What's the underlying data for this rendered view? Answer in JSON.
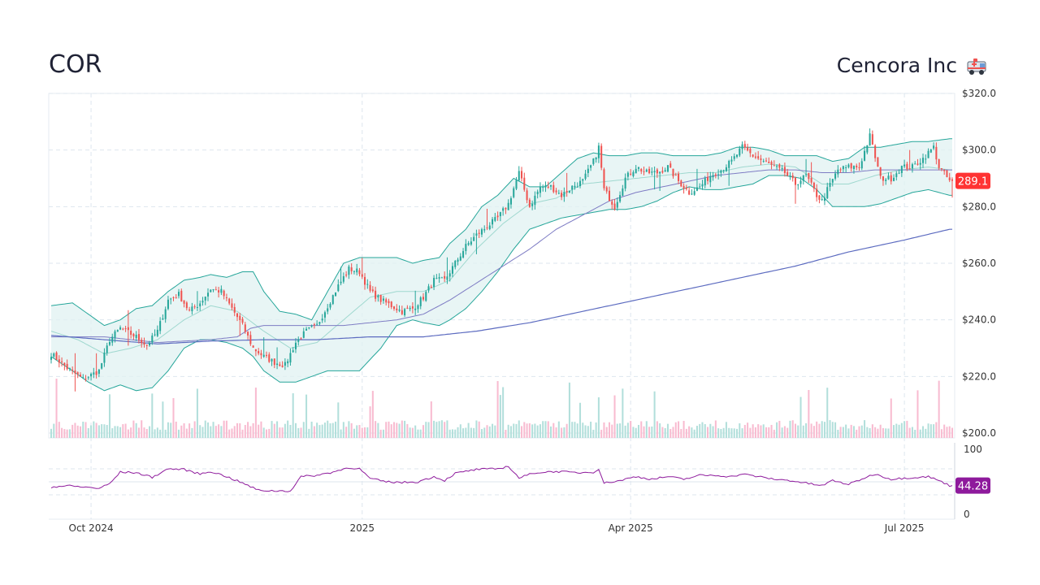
{
  "header": {
    "ticker": "COR",
    "company_name": "Cencora Inc",
    "company_icon": "ambulance-icon"
  },
  "colors": {
    "up": "#26a69a",
    "down": "#ef5350",
    "up_volume": "#b2dfdb",
    "down_volume": "#f8bbd0",
    "band_fill": "#e0f2f1",
    "band_line": "#26a69a",
    "sma_mid": "#9fd8cf",
    "ma_50": "#7e7cc4",
    "ma_200": "#5c6bc0",
    "rsi_line": "#8e1a9c",
    "price_badge": "#ff3333",
    "rsi_badge": "#8e1a9c"
  },
  "chart_data": [
    {
      "type": "candlestick",
      "title": "",
      "x_ticks": [
        "Oct 2024",
        "2025",
        "Apr 2025",
        "Jul 2025"
      ],
      "y_ticks": [
        "$320.0",
        "$300.0",
        "$280.0",
        "$260.0",
        "$240.0",
        "$220.0",
        "$200.0"
      ],
      "ylim": [
        200,
        320
      ],
      "last_price_label": "289.1",
      "price_path": [
        [
          0,
          228
        ],
        [
          6,
          223
        ],
        [
          12,
          219
        ],
        [
          18,
          222
        ],
        [
          22,
          233
        ],
        [
          26,
          237
        ],
        [
          32,
          234
        ],
        [
          36,
          231
        ],
        [
          40,
          236
        ],
        [
          44,
          247
        ],
        [
          48,
          249
        ],
        [
          52,
          243
        ],
        [
          56,
          246
        ],
        [
          60,
          251
        ],
        [
          64,
          250
        ],
        [
          68,
          244
        ],
        [
          72,
          238
        ],
        [
          76,
          230
        ],
        [
          80,
          227
        ],
        [
          84,
          225
        ],
        [
          88,
          224
        ],
        [
          92,
          232
        ],
        [
          96,
          236
        ],
        [
          100,
          238
        ],
        [
          104,
          245
        ],
        [
          108,
          252
        ],
        [
          112,
          258
        ],
        [
          116,
          257
        ],
        [
          120,
          250
        ],
        [
          124,
          247
        ],
        [
          128,
          245
        ],
        [
          132,
          243
        ],
        [
          136,
          244
        ],
        [
          140,
          248
        ],
        [
          144,
          254
        ],
        [
          148,
          254
        ],
        [
          152,
          260
        ],
        [
          156,
          266
        ],
        [
          160,
          270
        ],
        [
          164,
          273
        ],
        [
          168,
          276
        ],
        [
          172,
          281
        ],
        [
          176,
          292
        ],
        [
          180,
          280
        ],
        [
          184,
          287
        ],
        [
          188,
          287
        ],
        [
          192,
          284
        ],
        [
          196,
          287
        ],
        [
          200,
          289
        ],
        [
          204,
          296
        ],
        [
          206,
          301
        ],
        [
          208,
          286
        ],
        [
          212,
          280
        ],
        [
          216,
          290
        ],
        [
          220,
          294
        ],
        [
          224,
          292
        ],
        [
          228,
          292
        ],
        [
          232,
          294
        ],
        [
          236,
          289
        ],
        [
          240,
          285
        ],
        [
          244,
          287
        ],
        [
          248,
          291
        ],
        [
          252,
          293
        ],
        [
          256,
          296
        ],
        [
          260,
          301
        ],
        [
          264,
          298
        ],
        [
          268,
          296
        ],
        [
          272,
          294
        ],
        [
          276,
          292
        ],
        [
          280,
          288
        ],
        [
          284,
          291
        ],
        [
          288,
          284
        ],
        [
          290,
          282
        ],
        [
          292,
          286
        ],
        [
          296,
          293
        ],
        [
          300,
          294
        ],
        [
          304,
          294
        ],
        [
          308,
          305
        ],
        [
          312,
          290
        ],
        [
          316,
          290
        ],
        [
          320,
          294
        ],
        [
          324,
          294
        ],
        [
          328,
          297
        ],
        [
          332,
          301
        ],
        [
          334,
          294
        ],
        [
          338,
          289.1
        ]
      ],
      "upper_band": [
        [
          0,
          245
        ],
        [
          8,
          246
        ],
        [
          14,
          242
        ],
        [
          20,
          238
        ],
        [
          26,
          240
        ],
        [
          32,
          244
        ],
        [
          38,
          245
        ],
        [
          44,
          250
        ],
        [
          50,
          254
        ],
        [
          56,
          255
        ],
        [
          60,
          256
        ],
        [
          66,
          255
        ],
        [
          72,
          257
        ],
        [
          76,
          257
        ],
        [
          80,
          250
        ],
        [
          86,
          243
        ],
        [
          92,
          242
        ],
        [
          98,
          240
        ],
        [
          104,
          250
        ],
        [
          110,
          260
        ],
        [
          116,
          262
        ],
        [
          124,
          262
        ],
        [
          130,
          262
        ],
        [
          136,
          260
        ],
        [
          140,
          261
        ],
        [
          146,
          262
        ],
        [
          150,
          267
        ],
        [
          156,
          272
        ],
        [
          162,
          280
        ],
        [
          168,
          284
        ],
        [
          174,
          290
        ],
        [
          180,
          287
        ],
        [
          186,
          287
        ],
        [
          192,
          292
        ],
        [
          198,
          297
        ],
        [
          204,
          299
        ],
        [
          210,
          298
        ],
        [
          216,
          298
        ],
        [
          222,
          299
        ],
        [
          228,
          299
        ],
        [
          234,
          298
        ],
        [
          240,
          298
        ],
        [
          246,
          298
        ],
        [
          252,
          299
        ],
        [
          258,
          301
        ],
        [
          264,
          301
        ],
        [
          270,
          300
        ],
        [
          276,
          298
        ],
        [
          282,
          298
        ],
        [
          288,
          298
        ],
        [
          294,
          296
        ],
        [
          300,
          297
        ],
        [
          306,
          301
        ],
        [
          312,
          301
        ],
        [
          318,
          302
        ],
        [
          324,
          303
        ],
        [
          330,
          303
        ],
        [
          338,
          304
        ]
      ],
      "lower_band": [
        [
          0,
          227
        ],
        [
          8,
          222
        ],
        [
          14,
          218
        ],
        [
          20,
          215
        ],
        [
          26,
          217
        ],
        [
          32,
          215
        ],
        [
          38,
          216
        ],
        [
          44,
          222
        ],
        [
          50,
          230
        ],
        [
          56,
          233
        ],
        [
          60,
          233
        ],
        [
          66,
          232
        ],
        [
          72,
          230
        ],
        [
          76,
          227
        ],
        [
          80,
          222
        ],
        [
          86,
          218
        ],
        [
          92,
          218
        ],
        [
          98,
          220
        ],
        [
          104,
          222
        ],
        [
          110,
          222
        ],
        [
          116,
          222
        ],
        [
          124,
          230
        ],
        [
          130,
          238
        ],
        [
          136,
          240
        ],
        [
          140,
          239
        ],
        [
          146,
          238
        ],
        [
          150,
          240
        ],
        [
          156,
          244
        ],
        [
          162,
          250
        ],
        [
          168,
          257
        ],
        [
          174,
          265
        ],
        [
          180,
          272
        ],
        [
          186,
          274
        ],
        [
          192,
          276
        ],
        [
          198,
          277
        ],
        [
          204,
          278
        ],
        [
          210,
          279
        ],
        [
          216,
          279
        ],
        [
          222,
          280
        ],
        [
          228,
          282
        ],
        [
          234,
          285
        ],
        [
          240,
          287
        ],
        [
          246,
          286
        ],
        [
          252,
          286
        ],
        [
          258,
          287
        ],
        [
          264,
          288
        ],
        [
          270,
          291
        ],
        [
          276,
          291
        ],
        [
          282,
          290
        ],
        [
          288,
          286
        ],
        [
          294,
          280
        ],
        [
          300,
          280
        ],
        [
          306,
          280
        ],
        [
          312,
          281
        ],
        [
          318,
          283
        ],
        [
          324,
          285
        ],
        [
          330,
          286
        ],
        [
          338,
          284
        ]
      ],
      "middle_band": [
        [
          0,
          236
        ],
        [
          10,
          233
        ],
        [
          20,
          228
        ],
        [
          30,
          230
        ],
        [
          40,
          233
        ],
        [
          50,
          240
        ],
        [
          60,
          245
        ],
        [
          70,
          243
        ],
        [
          80,
          236
        ],
        [
          90,
          230
        ],
        [
          100,
          232
        ],
        [
          110,
          240
        ],
        [
          120,
          248
        ],
        [
          130,
          250
        ],
        [
          140,
          250
        ],
        [
          150,
          254
        ],
        [
          160,
          265
        ],
        [
          170,
          274
        ],
        [
          180,
          281
        ],
        [
          190,
          283
        ],
        [
          200,
          288
        ],
        [
          210,
          289
        ],
        [
          220,
          290
        ],
        [
          230,
          291
        ],
        [
          240,
          292
        ],
        [
          250,
          292
        ],
        [
          260,
          294
        ],
        [
          270,
          295
        ],
        [
          280,
          294
        ],
        [
          290,
          288
        ],
        [
          300,
          288
        ],
        [
          310,
          291
        ],
        [
          320,
          293
        ],
        [
          330,
          294
        ],
        [
          338,
          293
        ]
      ],
      "ma_50": [
        [
          0,
          234
        ],
        [
          20,
          234
        ],
        [
          40,
          232
        ],
        [
          60,
          233
        ],
        [
          70,
          234
        ],
        [
          75,
          237
        ],
        [
          80,
          238
        ],
        [
          90,
          238
        ],
        [
          100,
          238
        ],
        [
          110,
          238
        ],
        [
          120,
          239
        ],
        [
          130,
          240
        ],
        [
          140,
          242
        ],
        [
          150,
          247
        ],
        [
          160,
          253
        ],
        [
          170,
          259
        ],
        [
          180,
          265
        ],
        [
          190,
          272
        ],
        [
          200,
          277
        ],
        [
          210,
          282
        ],
        [
          220,
          285
        ],
        [
          230,
          287
        ],
        [
          240,
          289
        ],
        [
          250,
          291
        ],
        [
          260,
          292
        ],
        [
          270,
          293
        ],
        [
          280,
          293
        ],
        [
          290,
          292
        ],
        [
          300,
          292
        ],
        [
          310,
          293
        ],
        [
          320,
          293
        ],
        [
          330,
          293
        ],
        [
          338,
          293
        ]
      ],
      "ma_200": [
        [
          0,
          234.5
        ],
        [
          20,
          233
        ],
        [
          40,
          231.5
        ],
        [
          60,
          232.5
        ],
        [
          80,
          233
        ],
        [
          100,
          233
        ],
        [
          120,
          234
        ],
        [
          140,
          234
        ],
        [
          160,
          236
        ],
        [
          180,
          239
        ],
        [
          200,
          243
        ],
        [
          220,
          247
        ],
        [
          240,
          251
        ],
        [
          260,
          255
        ],
        [
          280,
          259
        ],
        [
          300,
          264
        ],
        [
          320,
          268
        ],
        [
          338,
          272
        ]
      ]
    },
    {
      "type": "bar",
      "title": "volume",
      "values": []
    },
    {
      "type": "line",
      "title": "",
      "y_ticks": [
        "100",
        "0"
      ],
      "ylim": [
        0,
        100
      ],
      "last_value_label": "44.28",
      "rsi": [
        [
          0,
          42
        ],
        [
          6,
          44
        ],
        [
          12,
          42
        ],
        [
          18,
          40
        ],
        [
          22,
          47
        ],
        [
          26,
          65
        ],
        [
          32,
          64
        ],
        [
          38,
          57
        ],
        [
          44,
          70
        ],
        [
          50,
          69
        ],
        [
          56,
          62
        ],
        [
          60,
          66
        ],
        [
          66,
          58
        ],
        [
          72,
          48
        ],
        [
          78,
          37
        ],
        [
          84,
          36
        ],
        [
          90,
          36
        ],
        [
          94,
          58
        ],
        [
          100,
          60
        ],
        [
          106,
          65
        ],
        [
          112,
          72
        ],
        [
          116,
          70
        ],
        [
          120,
          55
        ],
        [
          126,
          50
        ],
        [
          132,
          49
        ],
        [
          138,
          50
        ],
        [
          144,
          58
        ],
        [
          148,
          52
        ],
        [
          152,
          63
        ],
        [
          160,
          69
        ],
        [
          168,
          70
        ],
        [
          172,
          74
        ],
        [
          176,
          56
        ],
        [
          182,
          64
        ],
        [
          190,
          66
        ],
        [
          198,
          64
        ],
        [
          204,
          65
        ],
        [
          206,
          70
        ],
        [
          208,
          48
        ],
        [
          214,
          52
        ],
        [
          220,
          58
        ],
        [
          226,
          54
        ],
        [
          232,
          58
        ],
        [
          238,
          54
        ],
        [
          244,
          60
        ],
        [
          250,
          60
        ],
        [
          256,
          58
        ],
        [
          260,
          62
        ],
        [
          266,
          58
        ],
        [
          272,
          54
        ],
        [
          278,
          52
        ],
        [
          284,
          48
        ],
        [
          290,
          44
        ],
        [
          294,
          52
        ],
        [
          300,
          46
        ],
        [
          306,
          56
        ],
        [
          310,
          62
        ],
        [
          316,
          54
        ],
        [
          322,
          56
        ],
        [
          330,
          58
        ],
        [
          334,
          52
        ],
        [
          338,
          44.28
        ]
      ]
    }
  ]
}
